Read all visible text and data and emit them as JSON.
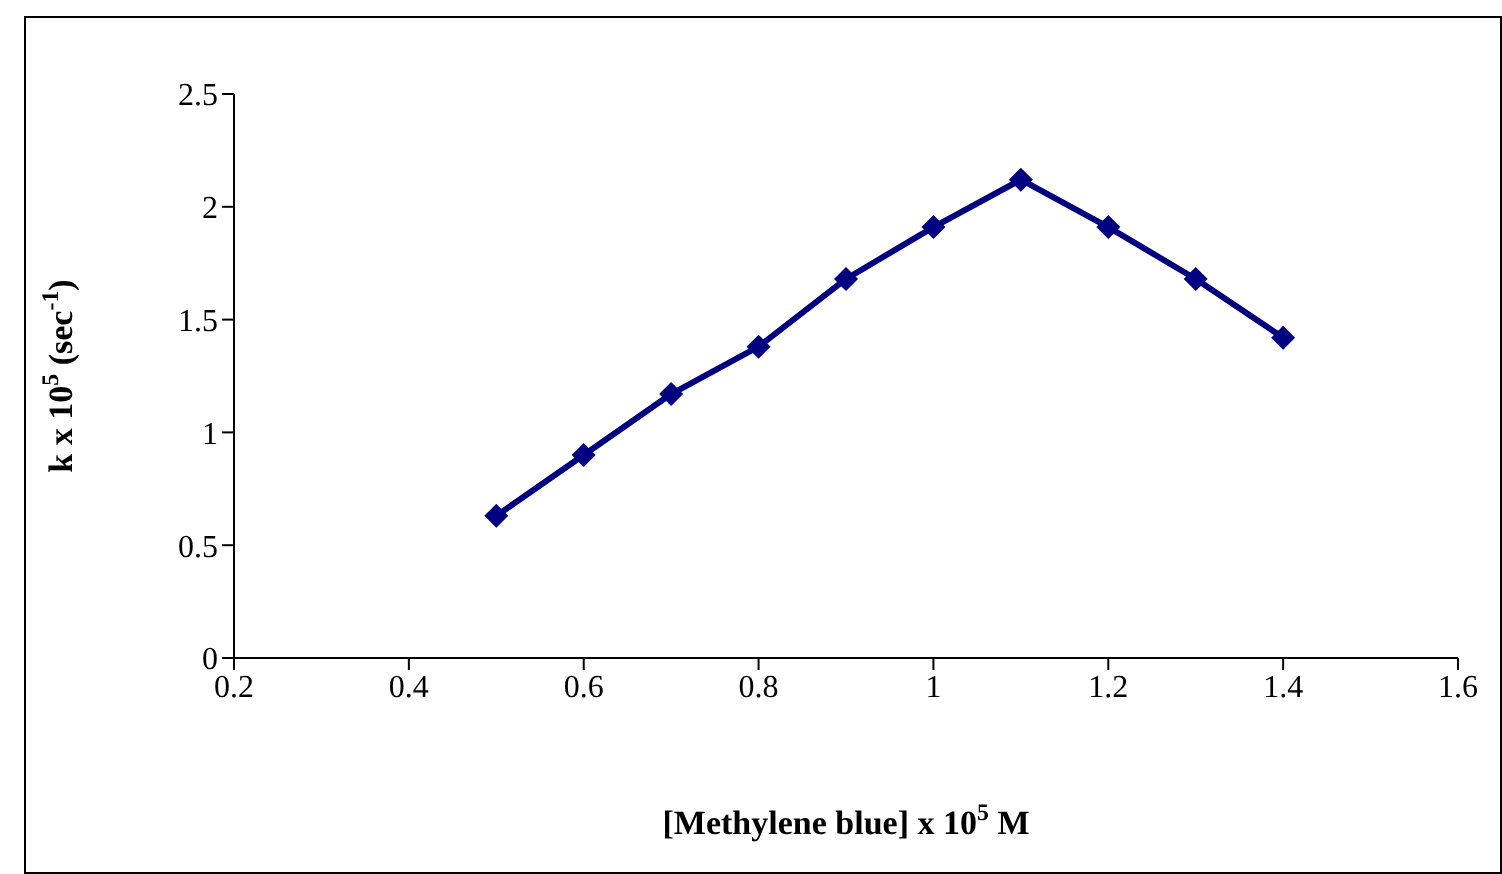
{
  "chart_data": {
    "type": "line",
    "xlabel": "[Methylene blue] x 10$^{5}$ M",
    "ylabel": "k x 10$^{5}$ (sec$^{-1}$)",
    "x": [
      0.5,
      0.6,
      0.7,
      0.8,
      0.9,
      1.0,
      1.1,
      1.2,
      1.3,
      1.4
    ],
    "series": [
      {
        "color": "#000080",
        "values": [
          0.63,
          0.9,
          1.17,
          1.38,
          1.68,
          1.91,
          2.12,
          1.91,
          1.68,
          1.42
        ]
      }
    ],
    "xlim": [
      0.2,
      1.6
    ],
    "xticks": [
      0.2,
      0.4,
      0.6,
      0.8,
      1,
      1.2,
      1.4,
      1.6
    ],
    "ylim": [
      0,
      2.5
    ],
    "yticks": [
      0,
      0.5,
      1,
      1.5,
      2,
      2.5
    ],
    "grid": false,
    "legend": false,
    "marker": "diamond",
    "line_style": "solid"
  }
}
